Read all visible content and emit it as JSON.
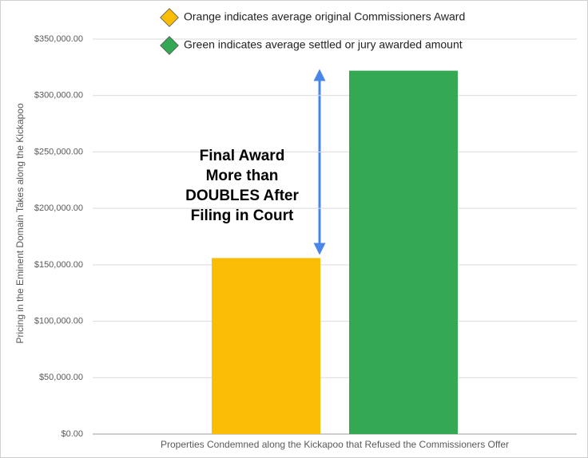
{
  "chart_data": {
    "type": "bar",
    "categories": [
      null
    ],
    "series": [
      {
        "name": "Orange indicates average original Commissioners Award",
        "color": "#fbbc04",
        "values": [
          156000
        ]
      },
      {
        "name": "Green indicates average settled or jury awarded amount",
        "color": "#34a853",
        "values": [
          322000
        ]
      }
    ],
    "x_label": "Properties Condemned along the Kickapoo that Refused the Commissioners Offer",
    "y_label": "Pricing in the Eminent Domain   Takes along the Kickapoo",
    "annotation": [
      "Final Award",
      "More than",
      "DOUBLES After",
      "Filing in Court"
    ],
    "ylim": [
      0,
      350000
    ],
    "yticks": [
      {
        "value": 0,
        "label": "$0.00"
      },
      {
        "value": 50000,
        "label": "$50,000.00"
      },
      {
        "value": 100000,
        "label": "$100,000.00"
      },
      {
        "value": 150000,
        "label": "$150,000.00"
      },
      {
        "value": 200000,
        "label": "$200,000.00"
      },
      {
        "value": 250000,
        "label": "$250,000.00"
      },
      {
        "value": 300000,
        "label": "$300,000.00"
      },
      {
        "value": 350000,
        "label": "$350,000.00"
      }
    ],
    "grid": true
  }
}
